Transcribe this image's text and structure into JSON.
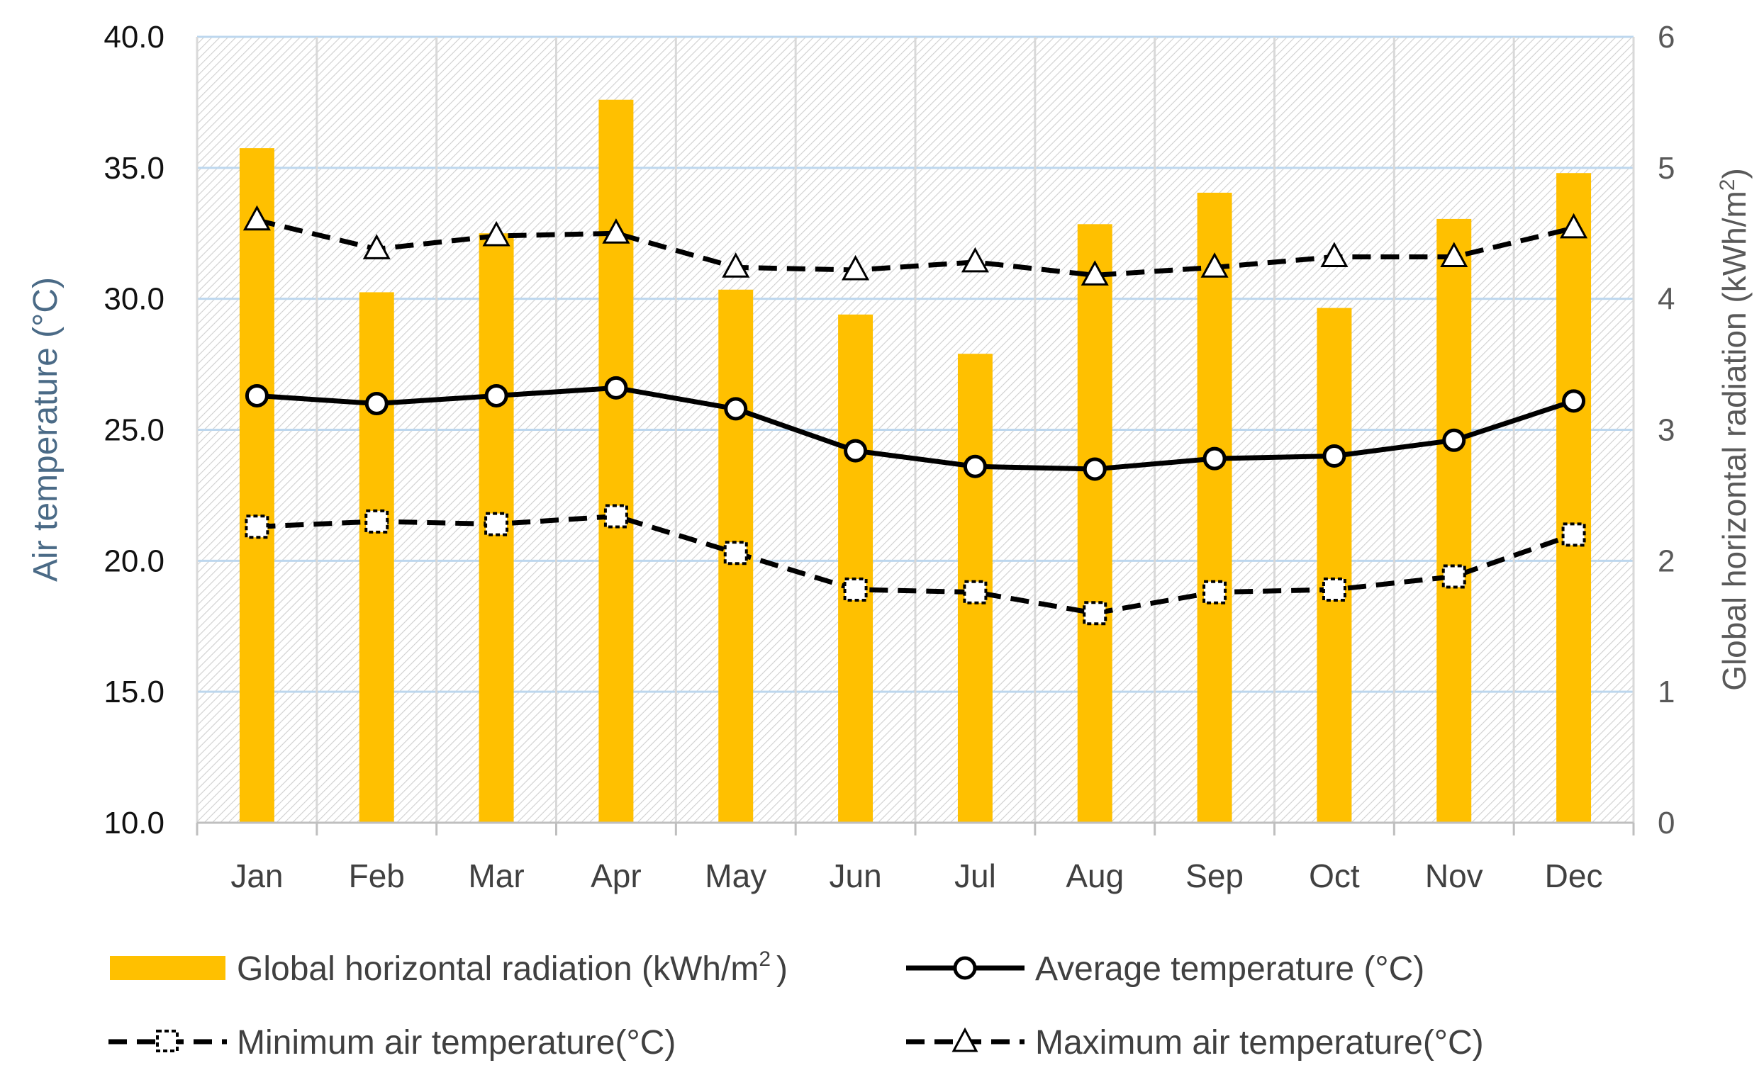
{
  "chart_data": {
    "type": "bar+line",
    "title": "",
    "categories": [
      "Jan",
      "Feb",
      "Mar",
      "Apr",
      "May",
      "Jun",
      "Jul",
      "Aug",
      "Sep",
      "Oct",
      "Nov",
      "Dec"
    ],
    "y_left": {
      "label": "Air temperature (°C)",
      "range": [
        10,
        40
      ],
      "ticks": [
        "10.0",
        "15.0",
        "20.0",
        "25.0",
        "30.0",
        "35.0",
        "40.0"
      ]
    },
    "y_right": {
      "label_main": "Global horizontal radiation (kWh/m",
      "label_sup": "2",
      "label_end": ")",
      "range": [
        0,
        6
      ],
      "ticks": [
        "0",
        "1",
        "2",
        "3",
        "4",
        "5",
        "6"
      ]
    },
    "series": [
      {
        "name": "Global horizontal radiation (kWh/m²)",
        "legend_main": "Global horizontal radiation (kWh/m",
        "legend_sup": "2",
        "legend_end": ")",
        "type": "bar",
        "axis": "right",
        "color": "#FFC000",
        "values": [
          5.15,
          4.05,
          4.5,
          5.52,
          4.07,
          3.88,
          3.58,
          4.57,
          4.81,
          3.93,
          4.61,
          4.96
        ]
      },
      {
        "name": "Average temperature (°C)",
        "type": "line",
        "axis": "left",
        "style": "solid",
        "marker": "circle",
        "color": "#000000",
        "values": [
          26.3,
          26.0,
          26.3,
          26.6,
          25.8,
          24.2,
          23.6,
          23.5,
          23.9,
          24.0,
          24.6,
          26.1
        ]
      },
      {
        "name": "Minimum air temperature(°C)",
        "type": "line",
        "axis": "left",
        "style": "dashed",
        "marker": "square",
        "color": "#000000",
        "values": [
          21.3,
          21.5,
          21.4,
          21.7,
          20.3,
          18.9,
          18.8,
          18.0,
          18.8,
          18.9,
          19.4,
          21.0
        ]
      },
      {
        "name": "Maximum air temperature(°C)",
        "type": "line",
        "axis": "left",
        "style": "dashed",
        "marker": "triangle",
        "color": "#000000",
        "values": [
          33.0,
          31.9,
          32.4,
          32.5,
          31.2,
          31.1,
          31.4,
          30.9,
          31.2,
          31.6,
          31.6,
          32.7
        ]
      }
    ],
    "grid": true,
    "legend": "bottom"
  }
}
